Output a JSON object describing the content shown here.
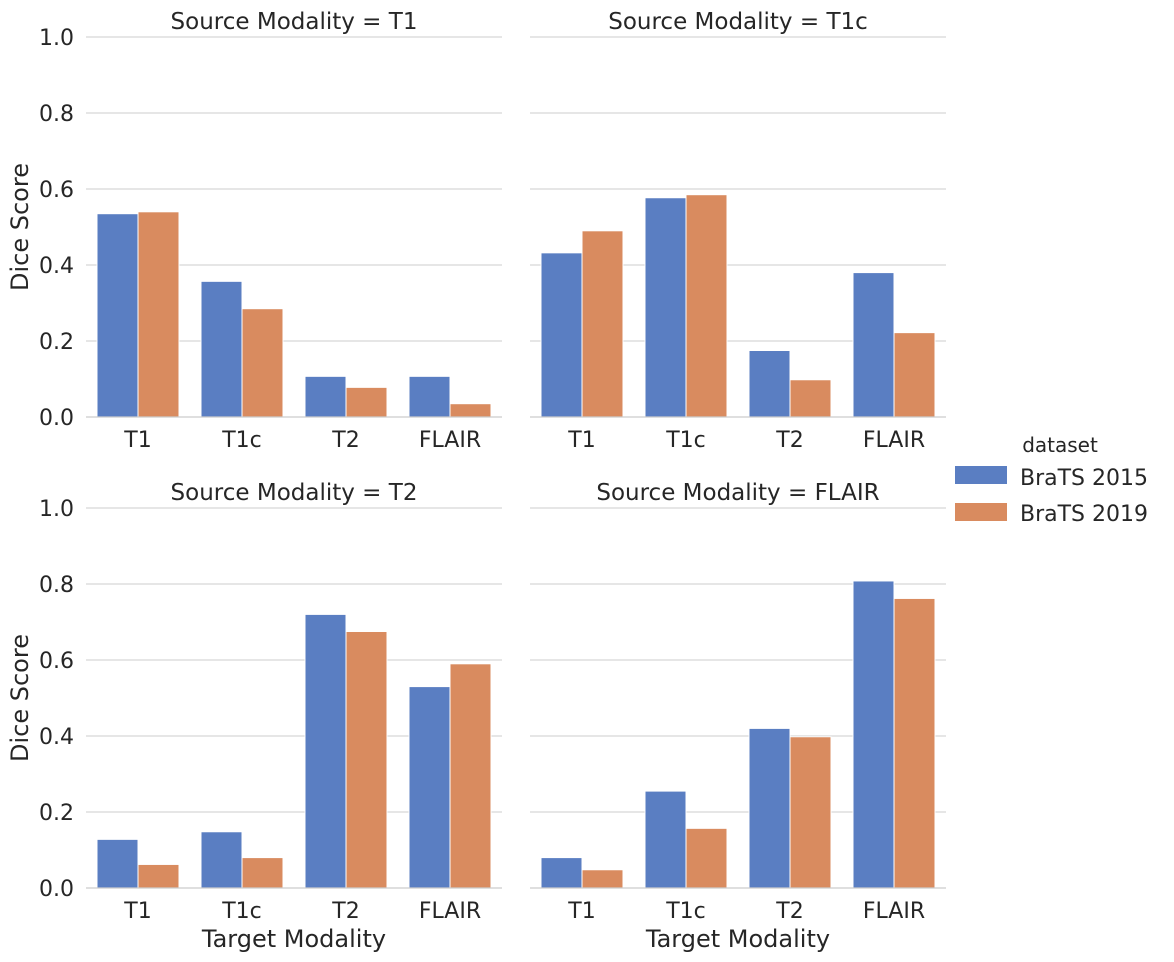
{
  "chart_data": {
    "type": "bar",
    "ylabel": "Dice Score",
    "xlabel": "Target Modality",
    "ylim": [
      0,
      1.0
    ],
    "yticks": [
      "0.0",
      "0.2",
      "0.4",
      "0.6",
      "0.8",
      "1.0"
    ],
    "categories": [
      "T1",
      "T1c",
      "T2",
      "FLAIR"
    ],
    "legend": {
      "title": "dataset",
      "placement": "right",
      "entries": [
        {
          "name": "BraTS 2015",
          "color": "#5a7ec2"
        },
        {
          "name": "BraTS 2019",
          "color": "#d98b5f"
        }
      ]
    },
    "panels": [
      {
        "title": "Source Modality = T1",
        "series": [
          {
            "name": "BraTS 2015",
            "values": [
              0.535,
              0.357,
              0.107,
              0.107
            ]
          },
          {
            "name": "BraTS 2019",
            "values": [
              0.54,
              0.285,
              0.078,
              0.035
            ]
          }
        ]
      },
      {
        "title": "Source Modality = T1c",
        "series": [
          {
            "name": "BraTS 2015",
            "values": [
              0.432,
              0.577,
              0.175,
              0.38
            ]
          },
          {
            "name": "BraTS 2019",
            "values": [
              0.49,
              0.585,
              0.098,
              0.222
            ]
          }
        ]
      },
      {
        "title": "Source Modality = T2",
        "series": [
          {
            "name": "BraTS 2015",
            "values": [
              0.128,
              0.148,
              0.72,
              0.53
            ]
          },
          {
            "name": "BraTS 2019",
            "values": [
              0.062,
              0.08,
              0.675,
              0.59
            ]
          }
        ]
      },
      {
        "title": "Source Modality = FLAIR",
        "series": [
          {
            "name": "BraTS 2015",
            "values": [
              0.08,
              0.255,
              0.42,
              0.808
            ]
          },
          {
            "name": "BraTS 2019",
            "values": [
              0.048,
              0.157,
              0.398,
              0.762
            ]
          }
        ]
      }
    ]
  }
}
